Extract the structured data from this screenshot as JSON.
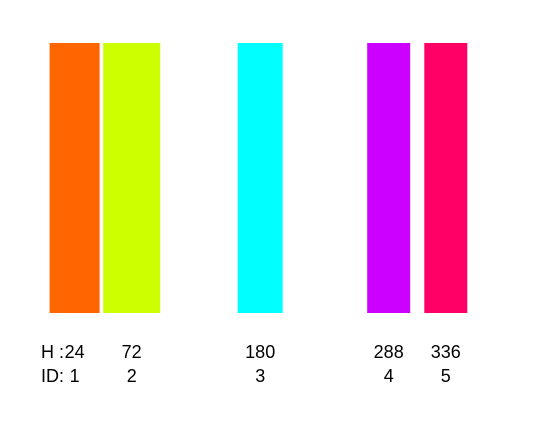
{
  "chart_data": {
    "type": "bar",
    "row_labels": {
      "hue": "H :",
      "id": "ID:"
    },
    "bars": [
      {
        "hue": 24,
        "id": 1,
        "color": "#ff6600"
      },
      {
        "hue": 72,
        "id": 2,
        "color": "#ccff00"
      },
      {
        "hue": 180,
        "id": 3,
        "color": "#00ffff"
      },
      {
        "hue": 288,
        "id": 4,
        "color": "#cc00ff"
      },
      {
        "hue": 336,
        "id": 5,
        "color": "#ff0066"
      }
    ]
  }
}
